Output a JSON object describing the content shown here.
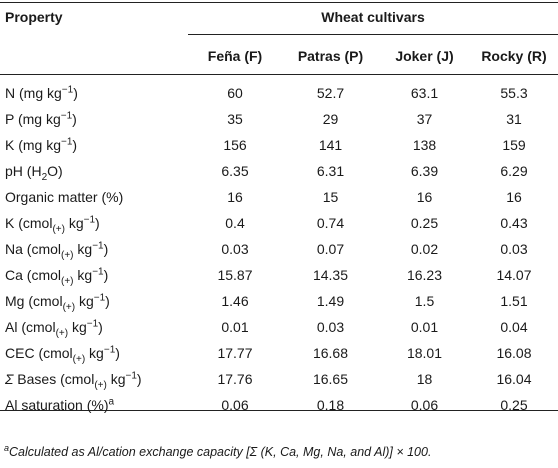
{
  "header": {
    "property_label": "Property",
    "group_label": "Wheat cultivars",
    "columns": [
      "Feña (F)",
      "Patras (P)",
      "Joker (J)",
      "Rocky (R)"
    ]
  },
  "rows": [
    {
      "parts": [
        [
          "N (mg kg",
          "n"
        ],
        [
          "−1",
          "sup"
        ],
        [
          ")",
          "n"
        ]
      ],
      "values": [
        "60",
        "52.7",
        "63.1",
        "55.3"
      ]
    },
    {
      "parts": [
        [
          "P (mg kg",
          "n"
        ],
        [
          "−1",
          "sup"
        ],
        [
          ")",
          "n"
        ]
      ],
      "values": [
        "35",
        "29",
        "37",
        "31"
      ]
    },
    {
      "parts": [
        [
          "K (mg kg",
          "n"
        ],
        [
          "−1",
          "sup"
        ],
        [
          ")",
          "n"
        ]
      ],
      "values": [
        "156",
        "141",
        "138",
        "159"
      ]
    },
    {
      "parts": [
        [
          "pH (H",
          "n"
        ],
        [
          "2",
          "sub"
        ],
        [
          "O)",
          "n"
        ]
      ],
      "values": [
        "6.35",
        "6.31",
        "6.39",
        "6.29"
      ]
    },
    {
      "parts": [
        [
          "Organic matter (%)",
          "n"
        ]
      ],
      "values": [
        "16",
        "15",
        "16",
        "16"
      ]
    },
    {
      "parts": [
        [
          "K (cmol",
          "n"
        ],
        [
          "(+)",
          "sub"
        ],
        [
          " kg",
          "n"
        ],
        [
          "−1",
          "sup"
        ],
        [
          ")",
          "n"
        ]
      ],
      "values": [
        "0.4",
        "0.74",
        "0.25",
        "0.43"
      ]
    },
    {
      "parts": [
        [
          "Na (cmol",
          "n"
        ],
        [
          "(+)",
          "sub"
        ],
        [
          " kg",
          "n"
        ],
        [
          "−1",
          "sup"
        ],
        [
          ")",
          "n"
        ]
      ],
      "values": [
        "0.03",
        "0.07",
        "0.02",
        "0.03"
      ]
    },
    {
      "parts": [
        [
          "Ca (cmol",
          "n"
        ],
        [
          "(+)",
          "sub"
        ],
        [
          " kg",
          "n"
        ],
        [
          "−1",
          "sup"
        ],
        [
          ")",
          "n"
        ]
      ],
      "values": [
        "15.87",
        "14.35",
        "16.23",
        "14.07"
      ]
    },
    {
      "parts": [
        [
          "Mg (cmol",
          "n"
        ],
        [
          "(+)",
          "sub"
        ],
        [
          " kg",
          "n"
        ],
        [
          "−1",
          "sup"
        ],
        [
          ")",
          "n"
        ]
      ],
      "values": [
        "1.46",
        "1.49",
        "1.5",
        "1.51"
      ]
    },
    {
      "parts": [
        [
          "Al (cmol",
          "n"
        ],
        [
          "(+)",
          "sub"
        ],
        [
          " kg",
          "n"
        ],
        [
          "−1",
          "sup"
        ],
        [
          ")",
          "n"
        ]
      ],
      "values": [
        "0.01",
        "0.03",
        "0.01",
        "0.04"
      ]
    },
    {
      "parts": [
        [
          "CEC (cmol",
          "n"
        ],
        [
          "(+)",
          "sub"
        ],
        [
          " kg",
          "n"
        ],
        [
          "−1",
          "sup"
        ],
        [
          ")",
          "n"
        ]
      ],
      "values": [
        "17.77",
        "16.68",
        "18.01",
        "16.08"
      ]
    },
    {
      "parts": [
        [
          "Σ",
          "i"
        ],
        [
          " Bases (cmol",
          "n"
        ],
        [
          "(+)",
          "sub"
        ],
        [
          " kg",
          "n"
        ],
        [
          "−1",
          "sup"
        ],
        [
          ")",
          "n"
        ]
      ],
      "values": [
        "17.76",
        "16.65",
        "18",
        "16.04"
      ]
    },
    {
      "parts": [
        [
          "Al saturation (%)",
          "n"
        ],
        [
          "a",
          "sup"
        ]
      ],
      "values": [
        "0.06",
        "0.18",
        "0.06",
        "0.25"
      ]
    }
  ],
  "footnote": {
    "marker": "a",
    "text": "Calculated as Al/cation exchange capacity [Σ (K, Ca, Mg, Na, and Al)] × 100."
  }
}
